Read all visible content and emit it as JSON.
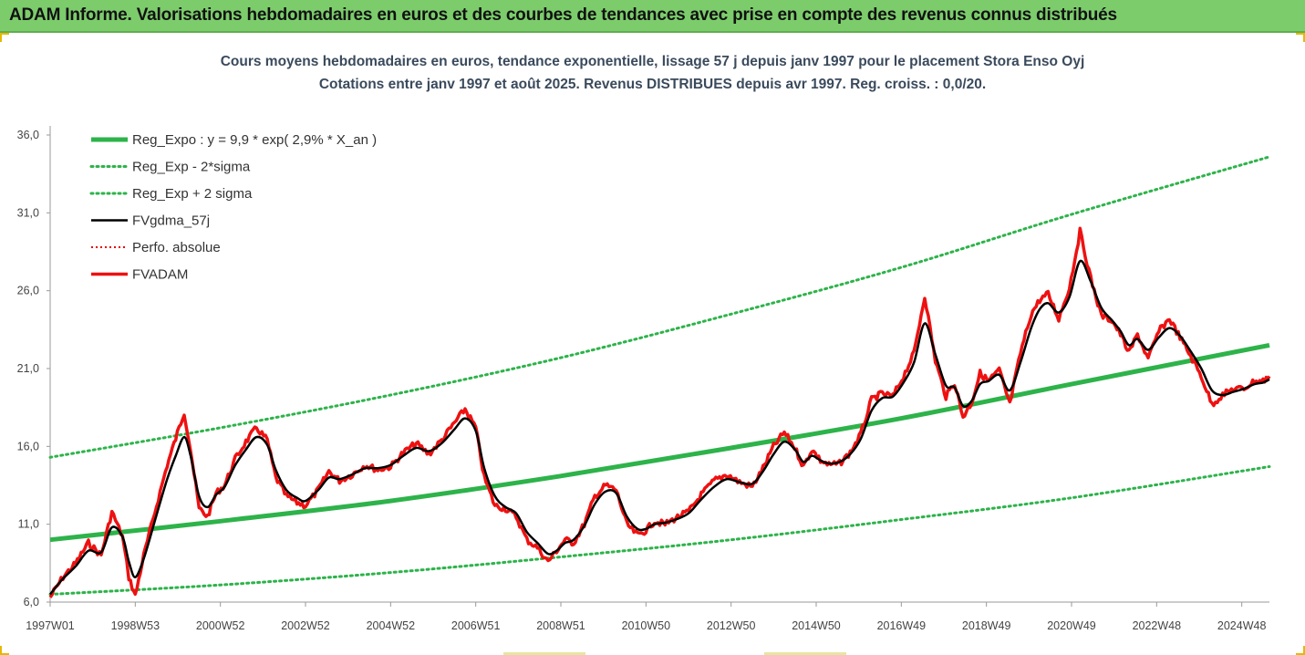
{
  "header": {
    "title": "ADAM Informe. Valorisations hebdomadaires en euros et des courbes de tendances avec prise en compte des revenus connus distribués"
  },
  "chart_data": {
    "type": "line",
    "title": "Cours moyens hebdomadaires en euros, tendance exponentielle, lissage 57 j depuis janv 1997 pour le placement Stora Enso Oyj",
    "subtitle": "Cotations entre janv 1997 et août 2025. Revenus DISTRIBUES depuis avr 1997. Reg. croiss. : 0,0/20.",
    "xlabel": "",
    "ylabel": "",
    "x_range": [
      1997.0,
      2025.65
    ],
    "ylim": [
      6.0,
      36.0
    ],
    "y_ticks": [
      "6,0",
      "11,0",
      "16,0",
      "21,0",
      "26,0",
      "31,0",
      "36,0"
    ],
    "x_ticks": [
      {
        "label": "1997W01",
        "year": 1997.0
      },
      {
        "label": "1998W53",
        "year": 1999.0
      },
      {
        "label": "2000W52",
        "year": 2001.0
      },
      {
        "label": "2002W52",
        "year": 2003.0
      },
      {
        "label": "2004W52",
        "year": 2005.0
      },
      {
        "label": "2006W51",
        "year": 2007.0
      },
      {
        "label": "2008W51",
        "year": 2009.0
      },
      {
        "label": "2010W50",
        "year": 2011.0
      },
      {
        "label": "2012W50",
        "year": 2013.0
      },
      {
        "label": "2014W50",
        "year": 2015.0
      },
      {
        "label": "2016W49",
        "year": 2017.0
      },
      {
        "label": "2018W49",
        "year": 2019.0
      },
      {
        "label": "2020W49",
        "year": 2021.0
      },
      {
        "label": "2022W48",
        "year": 2023.0
      },
      {
        "label": "2024W48",
        "year": 2025.0
      }
    ],
    "grid": false,
    "legend_position": "top-left",
    "colors": {
      "trend": "#2db34a",
      "bands": "#2db34a",
      "smooth": "#000000",
      "perf": "#e00000",
      "fvadam": "#ee1111"
    },
    "legend": [
      {
        "key": "trend",
        "label": "Reg_Expo : y = 9,9 * exp( 2,9% *  X_an )"
      },
      {
        "key": "lower",
        "label": "Reg_Exp - 2*sigma"
      },
      {
        "key": "upper",
        "label": "Reg_Exp + 2 sigma"
      },
      {
        "key": "smooth",
        "label": "FVgdma_57j"
      },
      {
        "key": "perf",
        "label": "Perfo. absolue"
      },
      {
        "key": "fvadam",
        "label": "FVADAM"
      }
    ],
    "series": [
      {
        "name": "Reg_Expo : y = 9,9 * exp( 2,9% *  X_an )",
        "key": "trend",
        "x": [
          1997.0,
          2001.0,
          2005.0,
          2009.0,
          2013.0,
          2017.0,
          2021.0,
          2025.65
        ],
        "values": [
          10.0,
          11.2,
          12.5,
          14.1,
          15.9,
          17.8,
          20.0,
          22.5
        ]
      },
      {
        "name": "Reg_Exp - 2*sigma",
        "key": "lower",
        "x": [
          1997.0,
          2001.0,
          2005.0,
          2009.0,
          2013.0,
          2017.0,
          2021.0,
          2025.65
        ],
        "values": [
          6.5,
          7.1,
          7.9,
          8.9,
          10.0,
          11.3,
          12.7,
          14.7
        ]
      },
      {
        "name": "Reg_Exp + 2 sigma",
        "key": "upper",
        "x": [
          1997.0,
          2001.0,
          2005.0,
          2009.0,
          2013.0,
          2017.0,
          2021.0,
          2025.65
        ],
        "values": [
          15.3,
          17.2,
          19.3,
          21.7,
          24.5,
          27.5,
          30.9,
          34.6
        ]
      },
      {
        "name": "FVADAM",
        "key": "fvadam",
        "x": [
          1997.0,
          1997.3,
          1997.6,
          1997.9,
          1998.2,
          1998.45,
          1998.7,
          1998.85,
          1999.0,
          1999.2,
          1999.5,
          1999.75,
          1999.95,
          2000.15,
          2000.3,
          2000.5,
          2000.7,
          2000.9,
          2001.1,
          2001.35,
          2001.6,
          2001.85,
          2002.1,
          2002.3,
          2002.55,
          2002.8,
          2003.0,
          2003.3,
          2003.55,
          2003.8,
          2004.1,
          2004.4,
          2004.7,
          2005.0,
          2005.3,
          2005.6,
          2005.9,
          2006.2,
          2006.5,
          2006.75,
          2007.0,
          2007.2,
          2007.45,
          2007.7,
          2007.95,
          2008.2,
          2008.45,
          2008.7,
          2008.9,
          2009.1,
          2009.3,
          2009.55,
          2009.8,
          2010.05,
          2010.3,
          2010.55,
          2010.8,
          2011.0,
          2011.2,
          2011.45,
          2011.7,
          2012.0,
          2012.3,
          2012.6,
          2012.9,
          2013.2,
          2013.5,
          2013.75,
          2014.0,
          2014.25,
          2014.5,
          2014.7,
          2014.9,
          2015.1,
          2015.3,
          2015.55,
          2015.8,
          2016.05,
          2016.3,
          2016.55,
          2016.8,
          2017.05,
          2017.3,
          2017.55,
          2017.8,
          2018.05,
          2018.25,
          2018.45,
          2018.65,
          2018.85,
          2019.05,
          2019.3,
          2019.55,
          2019.8,
          2020.05,
          2020.25,
          2020.45,
          2020.7,
          2020.95,
          2021.2,
          2021.45,
          2021.7,
          2021.95,
          2022.15,
          2022.35,
          2022.55,
          2022.8,
          2023.05,
          2023.3,
          2023.55,
          2023.8,
          2024.05,
          2024.3,
          2024.55,
          2024.8,
          2025.05,
          2025.3,
          2025.5,
          2025.65
        ],
        "values": [
          6.3,
          7.6,
          8.5,
          9.8,
          9.0,
          11.8,
          10.2,
          7.6,
          6.4,
          9.0,
          12.2,
          14.8,
          16.5,
          18.2,
          15.8,
          12.0,
          11.5,
          13.0,
          13.5,
          15.2,
          16.3,
          17.2,
          16.4,
          14.0,
          12.8,
          12.4,
          12.2,
          13.2,
          14.4,
          13.8,
          14.2,
          14.8,
          14.5,
          14.7,
          15.6,
          16.2,
          15.5,
          16.4,
          17.5,
          18.4,
          17.2,
          14.0,
          12.2,
          12.0,
          11.5,
          10.0,
          9.5,
          8.6,
          9.3,
          10.0,
          9.8,
          11.0,
          12.8,
          13.5,
          13.2,
          11.0,
          10.3,
          10.6,
          11.2,
          11.0,
          11.4,
          11.8,
          12.9,
          13.8,
          14.2,
          13.7,
          13.4,
          14.6,
          16.0,
          16.9,
          15.9,
          14.7,
          15.8,
          15.1,
          14.8,
          14.9,
          15.6,
          16.8,
          19.0,
          19.4,
          19.2,
          20.5,
          22.0,
          25.7,
          21.5,
          19.2,
          20.1,
          17.9,
          18.8,
          20.7,
          20.2,
          20.9,
          18.7,
          22.0,
          24.5,
          25.4,
          25.8,
          24.2,
          26.2,
          29.8,
          26.8,
          24.4,
          24.1,
          23.2,
          22.0,
          23.2,
          21.6,
          23.4,
          24.2,
          23.0,
          21.8,
          20.5,
          18.7,
          19.3,
          19.7,
          19.7,
          20.2,
          20.2,
          20.5
        ]
      },
      {
        "name": "FVgdma_57j",
        "key": "smooth",
        "x": [
          1997.0,
          1997.3,
          1997.6,
          1997.9,
          1998.2,
          1998.45,
          1998.7,
          1998.85,
          1999.0,
          1999.2,
          1999.5,
          1999.75,
          1999.95,
          2000.15,
          2000.3,
          2000.5,
          2000.7,
          2000.9,
          2001.1,
          2001.35,
          2001.6,
          2001.85,
          2002.1,
          2002.3,
          2002.55,
          2002.8,
          2003.0,
          2003.3,
          2003.55,
          2003.8,
          2004.1,
          2004.4,
          2004.7,
          2005.0,
          2005.3,
          2005.6,
          2005.9,
          2006.2,
          2006.5,
          2006.75,
          2007.0,
          2007.2,
          2007.45,
          2007.7,
          2007.95,
          2008.2,
          2008.45,
          2008.7,
          2008.9,
          2009.1,
          2009.3,
          2009.55,
          2009.8,
          2010.05,
          2010.3,
          2010.55,
          2010.8,
          2011.0,
          2011.2,
          2011.45,
          2011.7,
          2012.0,
          2012.3,
          2012.6,
          2012.9,
          2013.2,
          2013.5,
          2013.75,
          2014.0,
          2014.25,
          2014.5,
          2014.7,
          2014.9,
          2015.1,
          2015.3,
          2015.55,
          2015.8,
          2016.05,
          2016.3,
          2016.55,
          2016.8,
          2017.05,
          2017.3,
          2017.55,
          2017.8,
          2018.05,
          2018.25,
          2018.45,
          2018.65,
          2018.85,
          2019.05,
          2019.3,
          2019.55,
          2019.8,
          2020.05,
          2020.25,
          2020.45,
          2020.7,
          2020.95,
          2021.2,
          2021.45,
          2021.7,
          2021.95,
          2022.15,
          2022.35,
          2022.55,
          2022.8,
          2023.05,
          2023.3,
          2023.55,
          2023.8,
          2024.05,
          2024.3,
          2024.55,
          2024.8,
          2025.05,
          2025.3,
          2025.5,
          2025.65
        ],
        "values": [
          6.5,
          7.5,
          8.3,
          9.3,
          9.2,
          10.8,
          10.2,
          8.6,
          7.6,
          8.8,
          11.6,
          13.9,
          15.4,
          16.6,
          15.4,
          12.8,
          12.1,
          12.9,
          13.4,
          14.8,
          15.8,
          16.6,
          16.1,
          14.5,
          13.2,
          12.7,
          12.5,
          13.2,
          14.0,
          13.9,
          14.2,
          14.6,
          14.6,
          14.8,
          15.4,
          15.9,
          15.7,
          16.2,
          17.1,
          17.8,
          17.0,
          14.6,
          12.8,
          12.1,
          11.7,
          10.5,
          9.8,
          9.1,
          9.3,
          9.8,
          10.0,
          10.9,
          12.3,
          13.1,
          13.0,
          11.5,
          10.7,
          10.7,
          11.0,
          11.1,
          11.3,
          11.7,
          12.6,
          13.4,
          13.9,
          13.7,
          13.6,
          14.4,
          15.5,
          16.3,
          15.8,
          15.0,
          15.4,
          15.1,
          14.9,
          15.0,
          15.5,
          16.5,
          18.3,
          19.1,
          19.2,
          20.1,
          21.4,
          23.9,
          21.9,
          19.9,
          19.8,
          18.6,
          18.9,
          20.0,
          20.2,
          20.6,
          19.6,
          21.4,
          23.6,
          24.8,
          25.2,
          24.6,
          25.6,
          27.9,
          26.6,
          24.9,
          24.1,
          23.4,
          22.5,
          22.9,
          22.2,
          23.0,
          23.6,
          23.1,
          22.1,
          21.0,
          19.6,
          19.3,
          19.5,
          19.7,
          20.0,
          20.1,
          20.3
        ]
      }
    ]
  }
}
